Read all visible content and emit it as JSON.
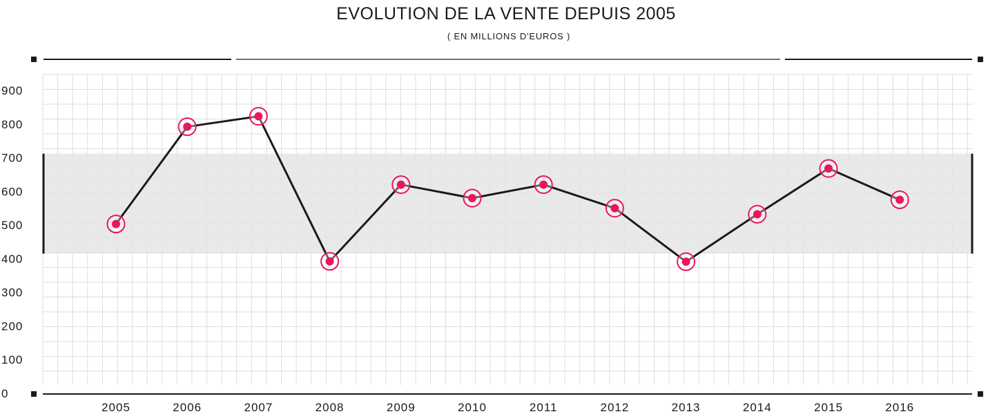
{
  "chart_data": {
    "type": "line",
    "title": "EVOLUTION DE LA VENTE DEPUIS 2005",
    "subtitle": "( EN MILLIONS D'EUROS )",
    "categories": [
      "2005",
      "2006",
      "2007",
      "2008",
      "2009",
      "2010",
      "2011",
      "2012",
      "2013",
      "2014",
      "2015",
      "2016"
    ],
    "series": [
      {
        "values": [
          503,
          792,
          823,
          392,
          620,
          580,
          620,
          550,
          391,
          532,
          668,
          575
        ]
      }
    ],
    "ylim": [
      0,
      900
    ],
    "yticks": [
      "0",
      "100",
      "200",
      "300",
      "400",
      "500",
      "600",
      "700",
      "800",
      "900"
    ],
    "band": [
      415,
      712
    ],
    "grid": true,
    "colors": {
      "line": "#1a1a1a",
      "marker": "#e8175d",
      "band": "#e5e5e5",
      "grid": "#dddddd"
    }
  }
}
